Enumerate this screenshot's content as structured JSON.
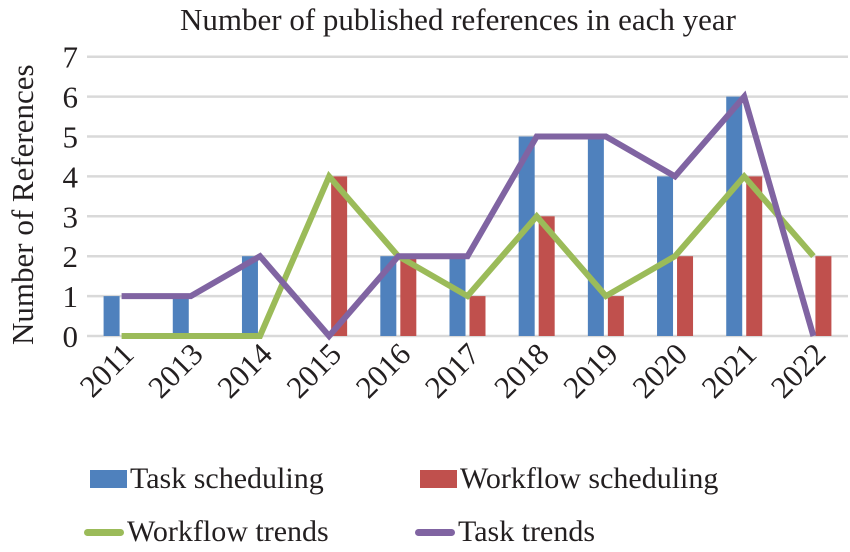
{
  "chart_data": {
    "type": "bar",
    "title": "Number of published references in each year",
    "xlabel": "",
    "ylabel": "Number of References",
    "ylim": [
      0,
      7
    ],
    "yticks": [
      0,
      1,
      2,
      3,
      4,
      5,
      6,
      7
    ],
    "grid": true,
    "legend_position": "bottom",
    "categories": [
      "2011",
      "2013",
      "2014",
      "2015",
      "2016",
      "2017",
      "2018",
      "2019",
      "2020",
      "2021",
      "2022"
    ],
    "series": [
      {
        "name": "Task scheduling",
        "type": "bar",
        "color": "#4f81bd",
        "values": [
          1,
          1,
          2,
          0,
          2,
          2,
          5,
          5,
          4,
          6,
          0
        ]
      },
      {
        "name": "Workflow scheduling",
        "type": "bar",
        "color": "#c0504d",
        "values": [
          0,
          0,
          0,
          4,
          2,
          1,
          3,
          1,
          2,
          4,
          2
        ]
      },
      {
        "name": "Workflow trends",
        "type": "line",
        "color": "#9bbb59",
        "values": [
          0,
          0,
          0,
          4,
          2,
          1,
          3,
          1,
          2,
          4,
          2
        ]
      },
      {
        "name": "Task trends",
        "type": "line",
        "color": "#8064a2",
        "values": [
          1,
          1,
          2,
          0,
          2,
          2,
          5,
          5,
          4,
          6,
          0
        ]
      }
    ]
  },
  "legend": {
    "items": [
      {
        "label": "Task scheduling",
        "kind": "bar",
        "color": "#4f81bd"
      },
      {
        "label": "Workflow scheduling",
        "kind": "bar",
        "color": "#c0504d"
      },
      {
        "label": "Workflow trends",
        "kind": "line",
        "color": "#9bbb59"
      },
      {
        "label": "Task trends",
        "kind": "line",
        "color": "#8064a2"
      }
    ]
  },
  "colors": {
    "gridline": "#d9d9d9",
    "text": "#231f20"
  }
}
